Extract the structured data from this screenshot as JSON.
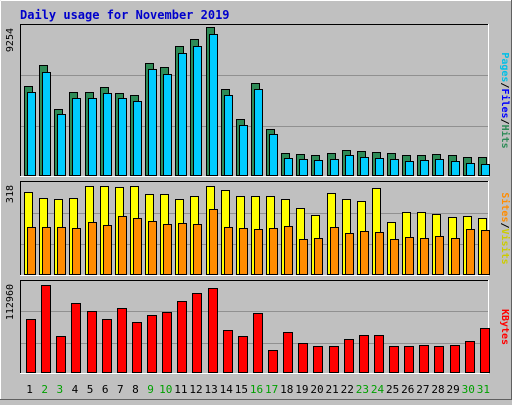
{
  "title": "Daily usage for November 2019",
  "colors": {
    "background": "#c0c0c0",
    "panel": "#c0c0c0",
    "title": "#0000cc",
    "hits": "#2e8b57",
    "files": "#00ccff",
    "pages": "#00bfe6",
    "visits": "#ffff00",
    "sites": "#ff8c00",
    "kbytes": "#ff0000",
    "weekend": "#00a000",
    "weekday": "#000000"
  },
  "chart_data": [
    {
      "type": "bar",
      "name": "hits-files-pages",
      "ymax_label": "9254",
      "ymax": 9254,
      "right_label": [
        "Pages",
        "/",
        "Files",
        "/",
        "Hits"
      ],
      "categories": [
        "1",
        "2",
        "3",
        "4",
        "5",
        "6",
        "7",
        "8",
        "9",
        "10",
        "11",
        "12",
        "13",
        "14",
        "15",
        "16",
        "17",
        "18",
        "19",
        "20",
        "21",
        "22",
        "23",
        "24",
        "25",
        "26",
        "27",
        "28",
        "29",
        "30",
        "31"
      ],
      "series": [
        {
          "name": "Hits",
          "values": [
            5600,
            6870,
            4180,
            5220,
            5220,
            5520,
            5150,
            5030,
            7000,
            6740,
            8050,
            8500,
            9250,
            5380,
            3550,
            5770,
            2900,
            1450,
            1380,
            1330,
            1450,
            1620,
            1550,
            1480,
            1450,
            1300,
            1330,
            1370,
            1300,
            1200,
            1150
          ]
        },
        {
          "name": "Files",
          "values": [
            5370,
            6570,
            3950,
            4950,
            4950,
            5280,
            4950,
            4800,
            6740,
            6480,
            7780,
            8200,
            8950,
            5150,
            3300,
            5530,
            2750,
            1240,
            1150,
            1100,
            1200,
            1400,
            1310,
            1240,
            1200,
            1070,
            1090,
            1150,
            1060,
            950,
            880
          ]
        }
      ]
    },
    {
      "type": "bar",
      "name": "visits-sites",
      "ymax_label": "318",
      "ymax": 318,
      "right_label": [
        "Sites",
        "/",
        "Visits"
      ],
      "series": [
        {
          "name": "Visits",
          "values": [
            296,
            276,
            270,
            275,
            318,
            318,
            314,
            318,
            290,
            288,
            272,
            283,
            318,
            305,
            283,
            283,
            282,
            273,
            240,
            214,
            293,
            270,
            265,
            311,
            190,
            225,
            224,
            219,
            209,
            210,
            204
          ]
        },
        {
          "name": "Sites",
          "values": [
            180,
            180,
            180,
            175,
            195,
            187,
            218,
            210,
            200,
            190,
            194,
            190,
            244,
            180,
            175,
            172,
            175,
            182,
            135,
            140,
            178,
            158,
            166,
            161,
            137,
            142,
            140,
            146,
            141,
            170,
            168
          ]
        }
      ]
    },
    {
      "type": "bar",
      "name": "kbytes",
      "ymax_label": "112960",
      "ymax": 112960,
      "right_label": [
        "KBytes"
      ],
      "series": [
        {
          "name": "KBytes",
          "values": [
            69900,
            112960,
            46900,
            90400,
            80000,
            69000,
            83800,
            65700,
            74800,
            77800,
            92500,
            102800,
            109600,
            55300,
            47500,
            76500,
            29300,
            52100,
            37900,
            34500,
            34300,
            43500,
            49400,
            48800,
            34200,
            34800,
            36500,
            34800,
            35700,
            41300,
            57200
          ]
        }
      ]
    }
  ]
}
